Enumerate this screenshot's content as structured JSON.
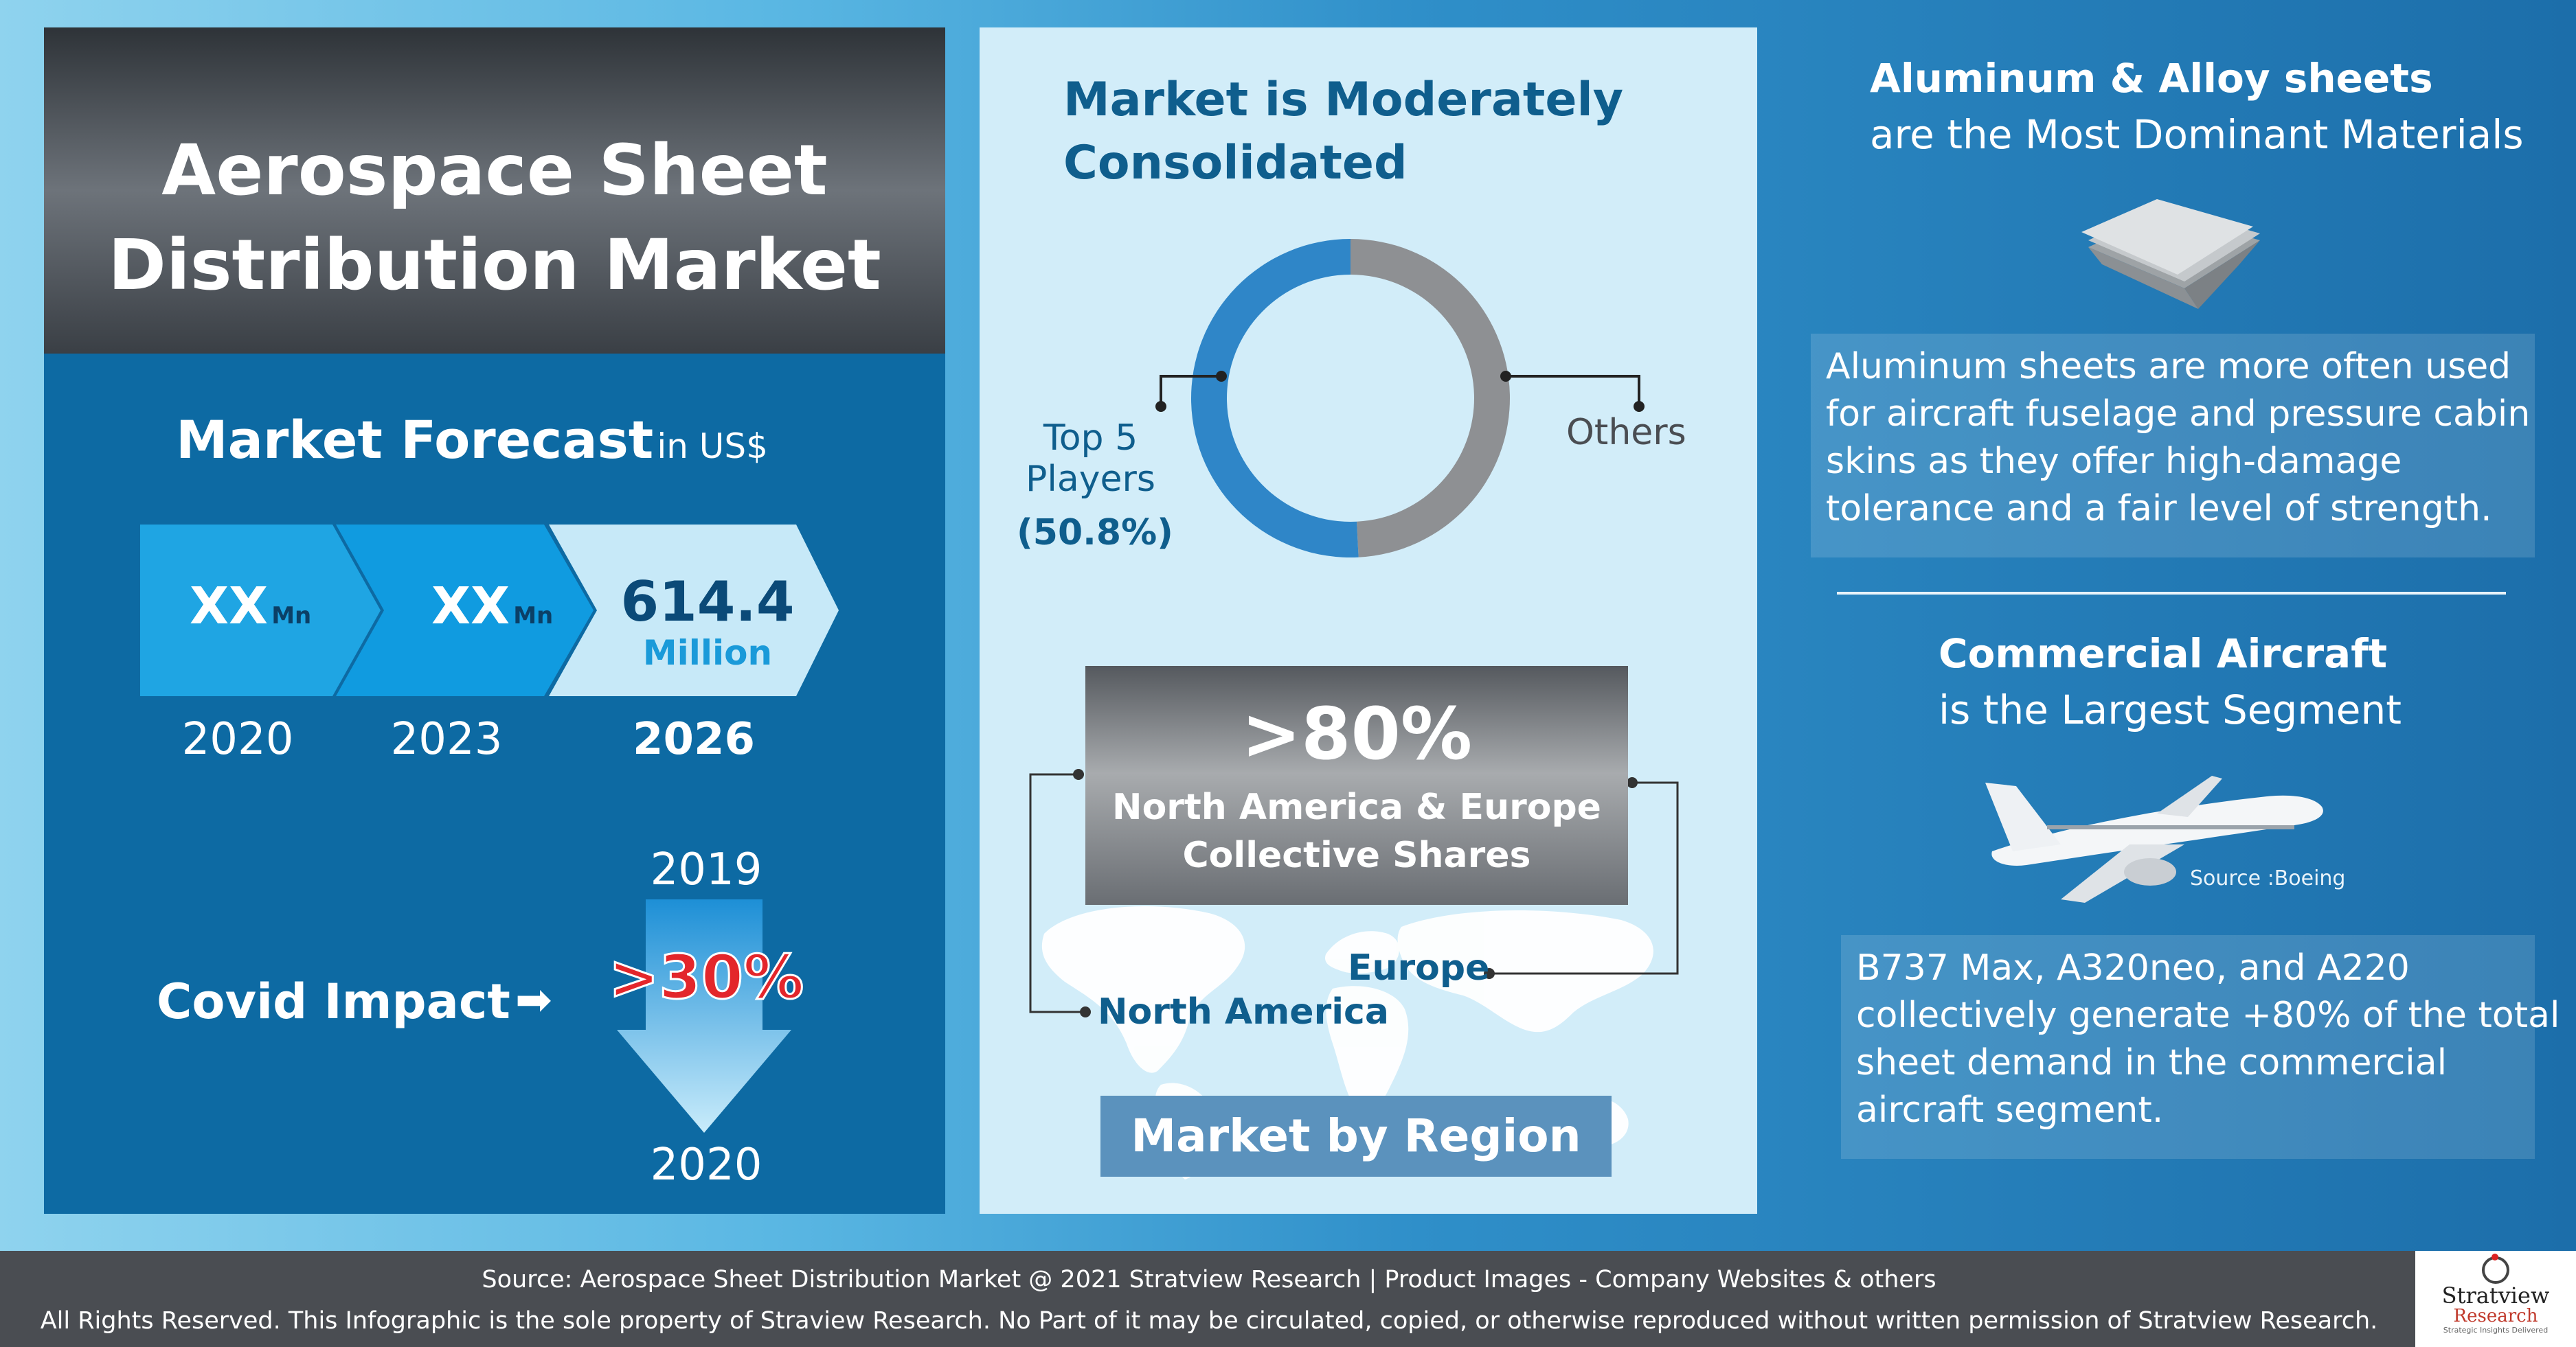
{
  "title": {
    "line1": "Aerospace Sheet",
    "line2": "Distribution Market"
  },
  "forecast": {
    "heading": "Market Forecast",
    "unit": "in US$",
    "tiles": [
      {
        "value": "XX",
        "unit": "Mn",
        "year": "2020"
      },
      {
        "value": "XX",
        "unit": "Mn",
        "year": "2023"
      },
      {
        "value": "614.4",
        "unit": "Million",
        "year": "2026"
      }
    ]
  },
  "covid": {
    "label": "Covid Impact",
    "arrow": "➡",
    "from_year": "2019",
    "to_year": "2020",
    "value": ">30%"
  },
  "consolidation": {
    "heading_line1": "Market is Moderately",
    "heading_line2": "Consolidated",
    "top5_line1": "Top 5",
    "top5_line2": "Players",
    "top5_value": "(50.8%)",
    "others_label": "Others"
  },
  "chart_data": {
    "type": "pie",
    "categories": [
      "Top 5 Players",
      "Others"
    ],
    "values": [
      50.8,
      49.2
    ],
    "colors": [
      "#2f86c8",
      "#8e9093"
    ]
  },
  "region": {
    "share": ">80%",
    "share_line1": "North America & Europe",
    "share_line2": "Collective Shares",
    "label_na": "North America",
    "label_eu": "Europe",
    "footer": "Market by Region"
  },
  "materials": {
    "heading_bold": "Aluminum & Alloy sheets",
    "heading_rest": "are the Most Dominant Materials",
    "note_lines": [
      "Aluminum sheets are more often used",
      "for aircraft fuselage and pressure cabin",
      "skins as they offer high-damage",
      "tolerance and a fair level of strength."
    ]
  },
  "segment": {
    "heading_bold": "Commercial Aircraft",
    "heading_rest": "is the Largest Segment",
    "image_source": "Source :Boeing",
    "note_lines": [
      "B737 Max, A320neo, and A220",
      "collectively generate +80% of the total",
      "sheet demand in the commercial",
      "aircraft segment."
    ]
  },
  "footer": {
    "line1": "Source: Aerospace Sheet Distribution Market @ 2021 Stratview Research  |  Product Images  - Company Websites & others",
    "line2": "All Rights Reserved. This Infographic is the sole property of Straview Research. No Part of it may be circulated, copied, or otherwise reproduced without written permission of Stratview Research.",
    "logo_line1": "Stratview",
    "logo_line2": "Research",
    "logo_tagline": "Strategic Insights Delivered"
  }
}
